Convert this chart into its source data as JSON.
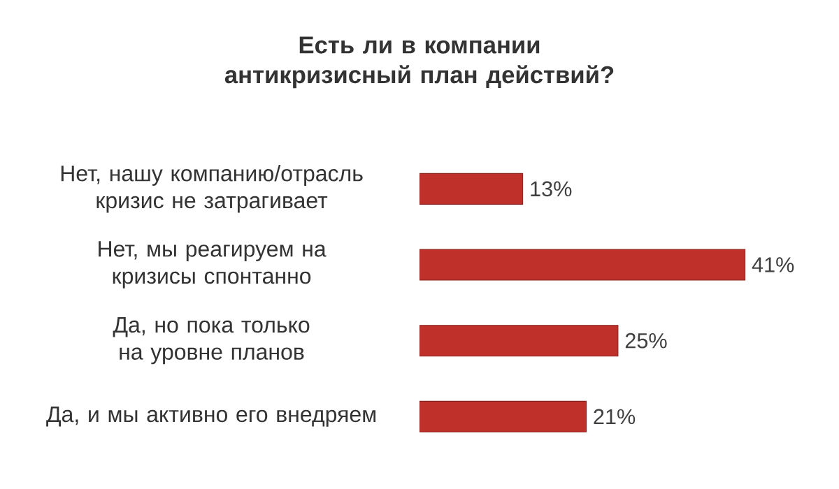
{
  "chart_data": {
    "type": "bar",
    "orientation": "horizontal",
    "title": "Есть ли в компании антикризисный план действий?",
    "categories": [
      "Нет, нашу компанию/отрасль кризис не затрагивает",
      "Нет, мы реагируем на кризисы спонтанно",
      "Да, но пока только на уровне планов",
      "Да, и мы активно его внедряем"
    ],
    "values": [
      13,
      41,
      25,
      21
    ],
    "color": "#c0302a",
    "value_labels": [
      "13%",
      "41%",
      "25%",
      "21%"
    ]
  }
}
